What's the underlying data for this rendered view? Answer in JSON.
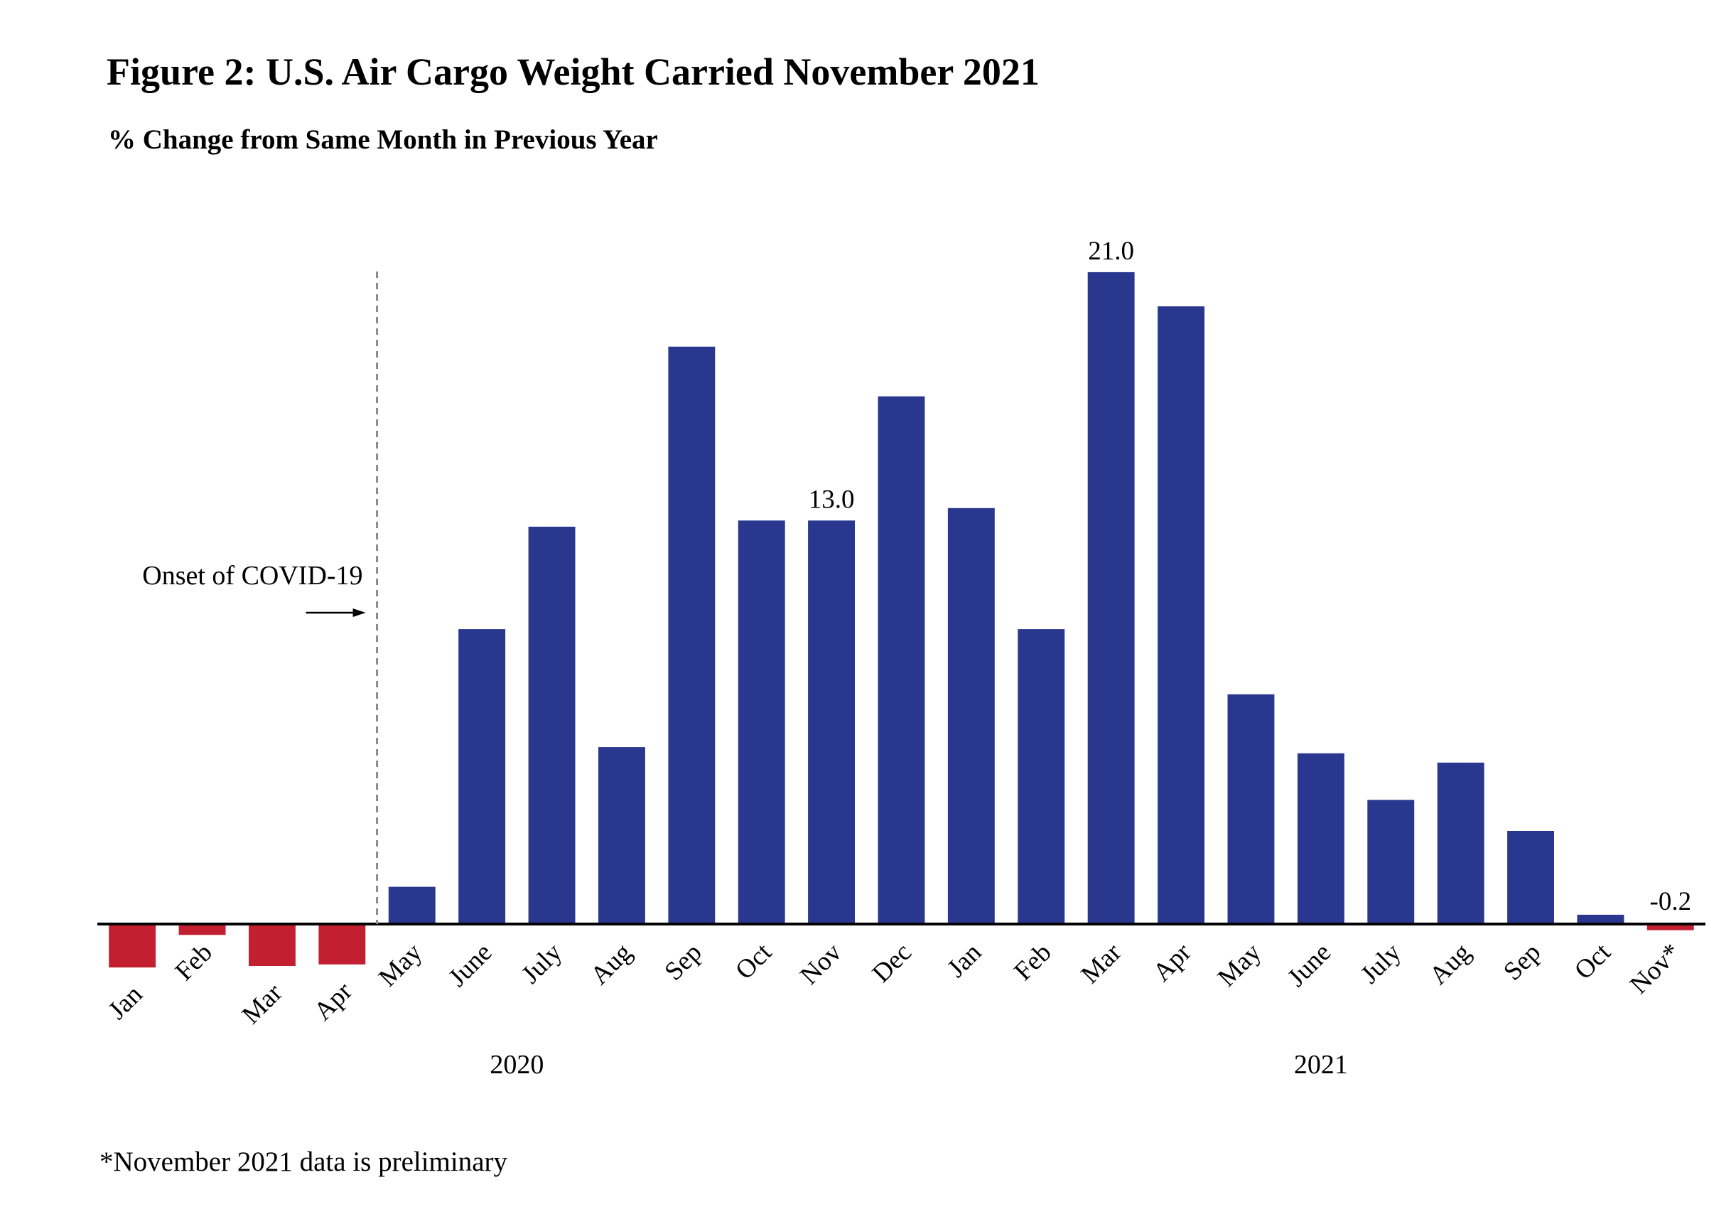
{
  "title": "Figure 2: U.S. Air Cargo Weight Carried November 2021",
  "subtitle": "% Change from Same Month in Previous Year",
  "footnote": "*November 2021 data is preliminary",
  "annotation": {
    "label": "Onset of COVID-19",
    "arrow": "→"
  },
  "colors": {
    "positive": "#29378E",
    "negative": "#C22030",
    "axis": "#000000",
    "covid_line": "#8A8A8A"
  },
  "chart_data": {
    "type": "bar",
    "title": "Figure 2: U.S. Air Cargo Weight Carried November 2021",
    "subtitle": "% Change from Same Month in Previous Year",
    "xlabel": "",
    "ylabel": "% Change from Same Month in Previous Year",
    "ylim": [
      -1.8,
      21.0
    ],
    "grid": false,
    "categories": [
      "Jan",
      "Feb",
      "Mar",
      "Apr",
      "May",
      "June",
      "July",
      "Aug",
      "Sep",
      "Oct",
      "Nov",
      "Dec",
      "Jan",
      "Feb",
      "Mar",
      "Apr",
      "May",
      "June",
      "July",
      "Aug",
      "Sep",
      "Oct",
      "Nov*"
    ],
    "values": [
      -1.4,
      -0.35,
      -1.35,
      -1.3,
      1.2,
      9.5,
      12.8,
      5.7,
      18.6,
      13.0,
      13.0,
      17.0,
      13.4,
      9.5,
      21.0,
      19.9,
      7.4,
      5.5,
      4.0,
      5.2,
      3.0,
      0.3,
      -0.2
    ],
    "data_labels": [
      {
        "index": 10,
        "text": "13.0"
      },
      {
        "index": 14,
        "text": "21.0"
      },
      {
        "index": 22,
        "text": "-0.2"
      }
    ],
    "year_groups": [
      {
        "label": "2020",
        "start": 0,
        "end": 11
      },
      {
        "label": "2021",
        "start": 12,
        "end": 22
      }
    ],
    "covid_onset_between": [
      3,
      4
    ]
  }
}
